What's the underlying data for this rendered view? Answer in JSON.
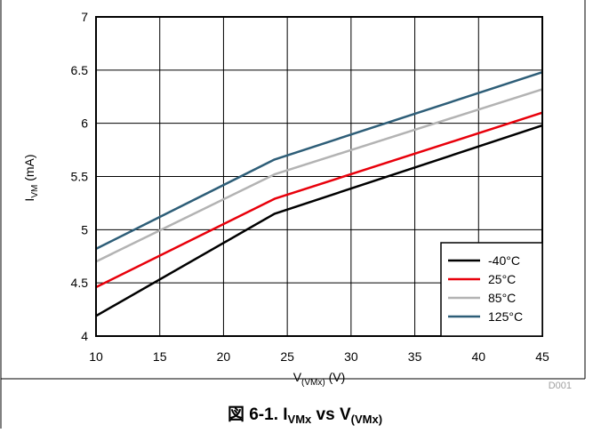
{
  "chart_data": {
    "type": "line",
    "xlabel": {
      "main": "V",
      "sub": "(VMx)",
      "unit": " (V)"
    },
    "ylabel": {
      "main": "I",
      "sub": "VM",
      "unit": " (mA)"
    },
    "xlim": [
      10,
      45
    ],
    "ylim": [
      4,
      7
    ],
    "xticks": [
      "10",
      "15",
      "20",
      "25",
      "30",
      "35",
      "40",
      "45"
    ],
    "yticks": [
      "4",
      "4.5",
      "5",
      "5.5",
      "6",
      "6.5",
      "7"
    ],
    "grid": true,
    "legend_position": "bottom-right",
    "series": [
      {
        "name": "-40°C",
        "color": "#000000",
        "x": [
          10,
          24,
          45
        ],
        "y": [
          4.19,
          5.15,
          5.98
        ]
      },
      {
        "name": "25°C",
        "color": "#e8000b",
        "x": [
          10,
          24,
          45
        ],
        "y": [
          4.46,
          5.29,
          6.1
        ]
      },
      {
        "name": "85°C",
        "color": "#b3b3b3",
        "x": [
          10,
          24,
          45
        ],
        "y": [
          4.7,
          5.52,
          6.32
        ]
      },
      {
        "name": "125°C",
        "color": "#2e5e78",
        "x": [
          10,
          24,
          45
        ],
        "y": [
          4.82,
          5.66,
          6.48
        ]
      }
    ],
    "figure_id": "D001",
    "caption": {
      "prefix": "図 6-1. I",
      "sub1": "VMx",
      "mid": " vs V",
      "sub2": "(VMx)"
    }
  }
}
